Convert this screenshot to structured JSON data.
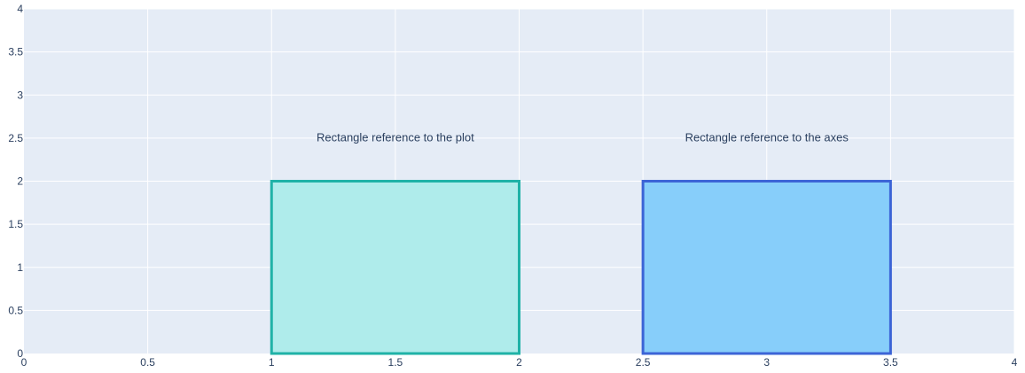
{
  "chart_data": {
    "type": "shapes",
    "xlim": [
      0,
      4
    ],
    "ylim": [
      0,
      4
    ],
    "x_ticks": [
      0,
      0.5,
      1,
      1.5,
      2,
      2.5,
      3,
      3.5,
      4
    ],
    "y_ticks": [
      0,
      0.5,
      1,
      1.5,
      2,
      2.5,
      3,
      3.5,
      4
    ],
    "grid": true,
    "colors": {
      "plot_bg": "#e5ecf6",
      "grid": "#ffffff",
      "tick_text": "#2a3f5f"
    },
    "rectangles": [
      {
        "x0": 1,
        "x1": 2,
        "y0": 0,
        "y1": 2,
        "fill": "#afeceb",
        "line": "#1fb2a7"
      },
      {
        "x0": 2.5,
        "x1": 3.5,
        "y0": 0,
        "y1": 2,
        "fill": "#87cefa",
        "line": "#3c64d6"
      }
    ],
    "annotations": [
      {
        "text": "Rectangle reference to the plot",
        "x": 1.5,
        "y": 2.5
      },
      {
        "text": "Rectangle reference to the axes",
        "x": 3,
        "y": 2.5
      }
    ]
  }
}
